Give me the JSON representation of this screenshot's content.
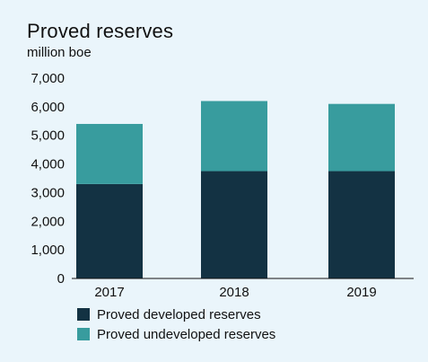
{
  "chart_data": {
    "type": "bar",
    "stacked": true,
    "title": "Proved reserves",
    "subtitle": "million boe",
    "xlabel": "",
    "ylabel": "",
    "categories": [
      "2017",
      "2018",
      "2019"
    ],
    "series": [
      {
        "name": "Proved developed reserves",
        "color": "#133243",
        "values": [
          3300,
          3750,
          3750
        ]
      },
      {
        "name": "Proved undeveloped reserves",
        "color": "#389c9e",
        "values": [
          2100,
          2450,
          2350
        ]
      }
    ],
    "ylim": [
      0,
      7000
    ],
    "yticks": [
      0,
      1000,
      2000,
      3000,
      4000,
      5000,
      6000,
      7000
    ],
    "ytick_labels": [
      "0",
      "1,000",
      "2,000",
      "3,000",
      "4,000",
      "5,000",
      "6,000",
      "7,000"
    ],
    "grid": false,
    "legend_position": "bottom"
  }
}
